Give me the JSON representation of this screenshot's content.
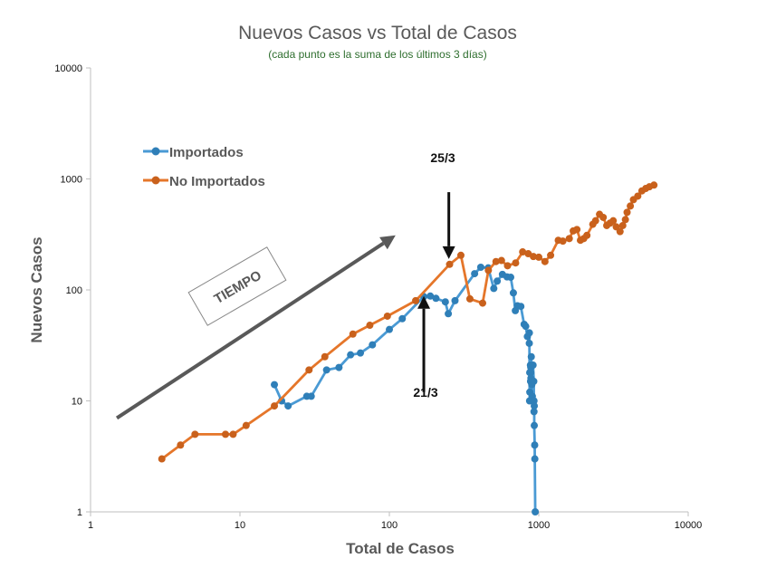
{
  "chart_data": {
    "type": "line",
    "title": "Nuevos Casos vs Total de Casos",
    "subtitle": "(cada punto es la suma de los últimos 3 días)",
    "xlabel": "Total de Casos",
    "ylabel": "Nuevos Casos",
    "xscale": "log",
    "yscale": "log",
    "xlim": [
      1,
      10000
    ],
    "ylim": [
      1,
      10000
    ],
    "x_ticks": [
      1,
      10,
      100,
      1000,
      10000
    ],
    "x_tick_labels": [
      "1",
      "10",
      "100",
      "1000",
      "10000"
    ],
    "y_ticks": [
      1,
      10,
      100,
      1000,
      10000
    ],
    "y_tick_labels": [
      "1",
      "10",
      "100",
      "1000",
      "10000"
    ],
    "grid": false,
    "legend_position": "left",
    "series": [
      {
        "name": "Importados",
        "color": "#4a9ad4",
        "x": [
          17,
          19,
          21,
          28,
          30,
          38,
          46,
          55,
          64,
          77,
          100,
          122,
          170,
          188,
          205,
          237,
          248,
          275,
          372,
          409,
          459,
          500,
          527,
          571,
          613,
          649,
          676,
          697,
          720,
          759,
          798,
          818,
          839,
          864,
          865,
          868,
          870,
          871,
          879,
          881,
          884,
          885,
          886,
          891,
          898,
          906,
          911,
          916,
          926,
          929,
          929,
          933,
          933,
          939,
          941,
          947
        ],
        "values": [
          14,
          10,
          9,
          11,
          11,
          19,
          20,
          26,
          27,
          32,
          44,
          55,
          87,
          88,
          84,
          78,
          61,
          80,
          140,
          160,
          158,
          103,
          120,
          138,
          131,
          130,
          94,
          65,
          72,
          71,
          49,
          47,
          38,
          33,
          41,
          10,
          18,
          12,
          21,
          15,
          20,
          18,
          16,
          25,
          14,
          11,
          10,
          21,
          15,
          8,
          10,
          9,
          6,
          4,
          3,
          1
        ]
      },
      {
        "name": "No Importados",
        "color": "#e5762a",
        "x": [
          3,
          4,
          5,
          8,
          9,
          11,
          17,
          29,
          37,
          57,
          74,
          97,
          150,
          253,
          301,
          346,
          421,
          460,
          517,
          563,
          618,
          700,
          780,
          850,
          920,
          1000,
          1100,
          1200,
          1350,
          1450,
          1600,
          1700,
          1800,
          1900,
          2000,
          2100,
          2300,
          2400,
          2550,
          2700,
          2850,
          3000,
          3150,
          3300,
          3500,
          3650,
          3800,
          3900,
          4100,
          4300,
          4600,
          4900,
          5200,
          5500,
          5900
        ],
        "values": [
          3,
          4,
          5,
          5,
          5,
          6,
          9,
          19,
          25,
          40,
          48,
          58,
          80,
          170,
          205,
          83,
          76,
          150,
          180,
          184,
          165,
          175,
          220,
          212,
          200,
          197,
          180,
          205,
          280,
          275,
          290,
          340,
          350,
          280,
          290,
          310,
          390,
          420,
          480,
          450,
          380,
          400,
          420,
          370,
          335,
          380,
          430,
          500,
          570,
          650,
          700,
          780,
          820,
          850,
          880
        ]
      }
    ],
    "annotations": [
      {
        "text": "25/3",
        "arrow": "down",
        "x": 250,
        "y_from": 760,
        "y_to": 190
      },
      {
        "text": "21/3",
        "arrow": "up",
        "x": 170,
        "y_from": 12,
        "y_to": 88
      },
      {
        "text": "TIEMPO",
        "boxed": true,
        "arrow": "diagonal",
        "x_from": 1.5,
        "y_from": 7,
        "x_to": 110,
        "y_to": 310
      }
    ]
  }
}
